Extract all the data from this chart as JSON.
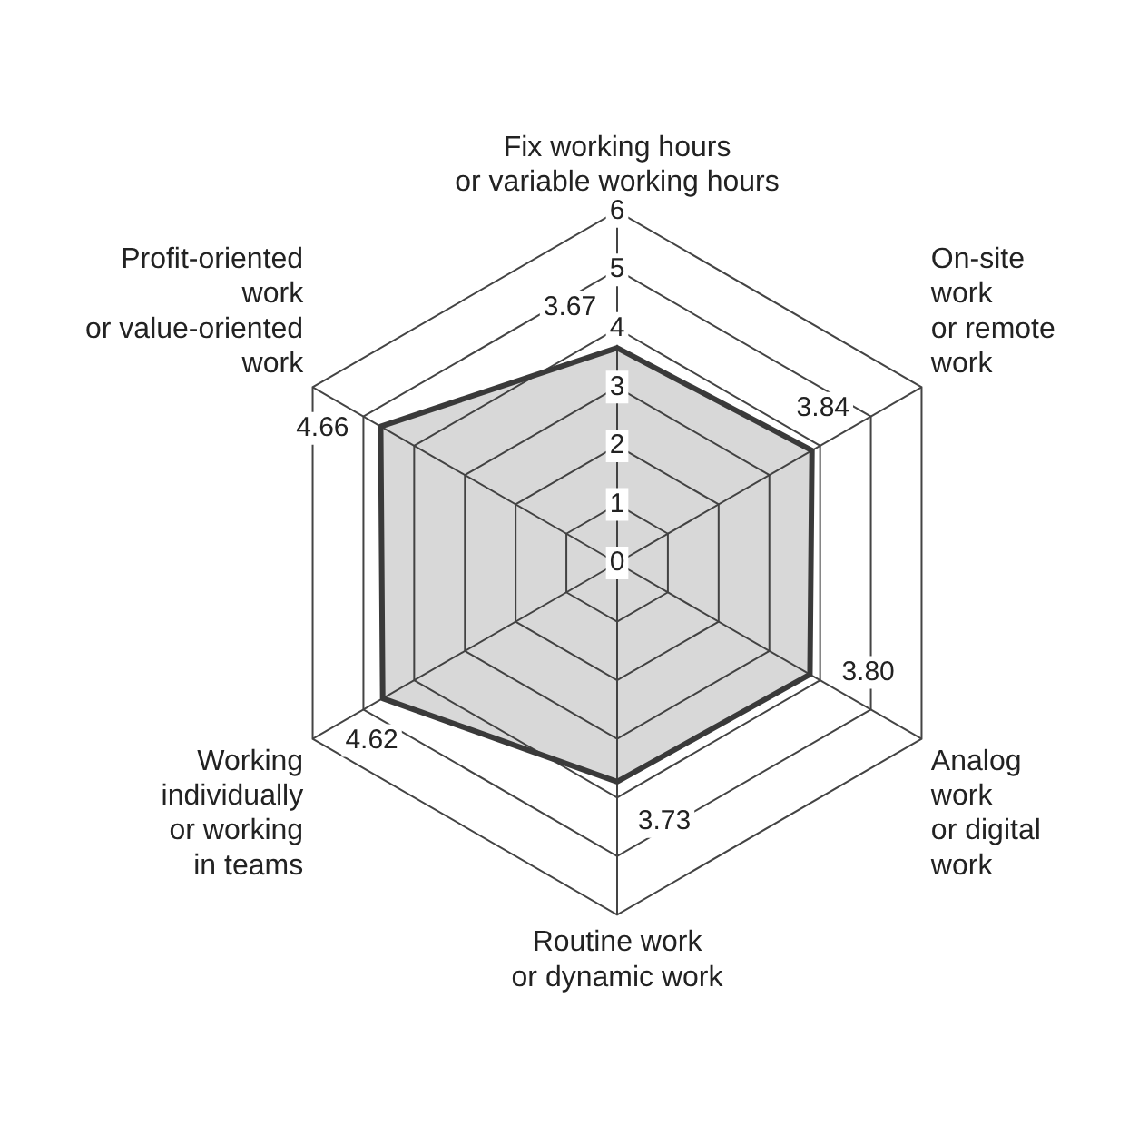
{
  "chart_data": {
    "type": "radar",
    "categories": [
      "Fix working hours\nor variable working hours",
      "On-site\nwork\nor remote\nwork",
      "Analog\nwork\nor digital\nwork",
      "Routine work\nor dynamic work",
      "Working\nindividually\nor working\nin teams",
      "Profit-oriented\nwork\nor value-oriented\nwork"
    ],
    "series": [
      {
        "color": "#3a3a3a",
        "values": [
          3.67,
          3.84,
          3.8,
          3.73,
          4.62,
          4.66
        ],
        "value_labels": [
          "3.67",
          "3.84",
          "3.80",
          "3.73",
          "4.62",
          "4.66"
        ]
      }
    ],
    "ylim": [
      0,
      6
    ],
    "yticks": [
      0,
      1,
      2,
      3,
      4,
      5,
      6
    ],
    "grid": true,
    "legend": false,
    "marker": "none",
    "line_style": "solid"
  }
}
